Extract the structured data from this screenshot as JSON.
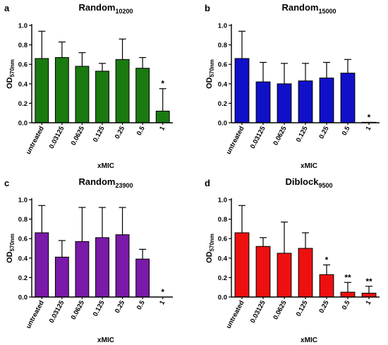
{
  "chart_data": [
    {
      "type": "bar",
      "panel": "a",
      "title": "Random",
      "title_subscript": "10200",
      "ylabel": "OD",
      "ylabel_subscript": "570nm",
      "xlabel": "xMIC",
      "categories": [
        "untreated",
        "0.03125",
        "0.0625",
        "0.125",
        "0.25",
        "0.5",
        "1"
      ],
      "values": [
        0.66,
        0.67,
        0.58,
        0.53,
        0.65,
        0.56,
        0.12
      ],
      "errors": [
        0.28,
        0.16,
        0.14,
        0.08,
        0.21,
        0.11,
        0.23
      ],
      "annotations": [
        "",
        "",
        "",
        "",
        "",
        "",
        "*"
      ],
      "ylim": [
        0,
        1.0
      ],
      "yticks": [
        "0.0",
        "0.2",
        "0.4",
        "0.6",
        "0.8",
        "1.0"
      ],
      "bar_color": "#1a7a10"
    },
    {
      "type": "bar",
      "panel": "b",
      "title": "Random",
      "title_subscript": "15000",
      "ylabel": "OD",
      "ylabel_subscript": "570nm",
      "xlabel": "xMIC",
      "categories": [
        "untreated",
        "0.03125",
        "0.0625",
        "0.125",
        "0.25",
        "0.5",
        "1"
      ],
      "values": [
        0.66,
        0.42,
        0.4,
        0.43,
        0.46,
        0.51,
        0.005
      ],
      "errors": [
        0.28,
        0.2,
        0.21,
        0.18,
        0.16,
        0.14,
        0
      ],
      "annotations": [
        "",
        "",
        "",
        "",
        "",
        "",
        "*"
      ],
      "ylim": [
        0,
        1.0
      ],
      "yticks": [
        "0.0",
        "0.2",
        "0.4",
        "0.6",
        "0.8",
        "1.0"
      ],
      "bar_color": "#1010c8"
    },
    {
      "type": "bar",
      "panel": "c",
      "title": "Random",
      "title_subscript": "23900",
      "ylabel": "OD",
      "ylabel_subscript": "570nm",
      "xlabel": "xMIC",
      "categories": [
        "untreated",
        "0.03125",
        "0.0625",
        "0.125",
        "0.25",
        "0.5",
        "1"
      ],
      "values": [
        0.66,
        0.41,
        0.57,
        0.61,
        0.64,
        0.39,
        0
      ],
      "errors": [
        0.28,
        0.17,
        0.35,
        0.31,
        0.28,
        0.1,
        0
      ],
      "annotations": [
        "",
        "",
        "",
        "",
        "",
        "",
        "*"
      ],
      "ylim": [
        0,
        1.0
      ],
      "yticks": [
        "0.0",
        "0.2",
        "0.4",
        "0.6",
        "0.8",
        "1.0"
      ],
      "bar_color": "#7a1aa8"
    },
    {
      "type": "bar",
      "panel": "d",
      "title": "Diblock",
      "title_subscript": "9500",
      "ylabel": "OD",
      "ylabel_subscript": "570nm",
      "xlabel": "xMIC",
      "categories": [
        "untreated",
        "0.03125",
        "0.0625",
        "0.125",
        "0.25",
        "0.5",
        "1"
      ],
      "values": [
        0.66,
        0.52,
        0.45,
        0.5,
        0.23,
        0.05,
        0.04
      ],
      "errors": [
        0.28,
        0.09,
        0.32,
        0.16,
        0.1,
        0.1,
        0.07
      ],
      "annotations": [
        "",
        "",
        "",
        "",
        "*",
        "**",
        "**"
      ],
      "ylim": [
        0,
        1.0
      ],
      "yticks": [
        "0.0",
        "0.2",
        "0.4",
        "0.6",
        "0.8",
        "1.0"
      ],
      "bar_color": "#ee1010"
    }
  ]
}
